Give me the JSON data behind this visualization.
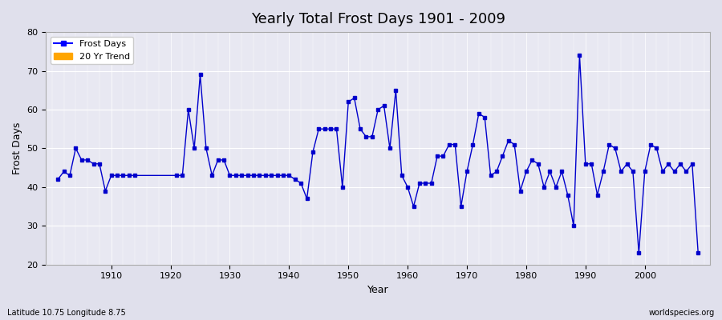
{
  "title": "Yearly Total Frost Days 1901 - 2009",
  "xlabel": "Year",
  "ylabel": "Frost Days",
  "footer_left": "Latitude 10.75 Longitude 8.75",
  "footer_right": "worldspecies.org",
  "legend_labels": [
    "Frost Days",
    "20 Yr Trend"
  ],
  "legend_colors": [
    "#0000ff",
    "#ffa500"
  ],
  "bg_color": "#e0e0ec",
  "plot_bg_color": "#e8e8f2",
  "line_color": "#0000cc",
  "marker_color": "#0000cc",
  "ylim": [
    20,
    80
  ],
  "xlim": [
    1899,
    2011
  ],
  "yticks": [
    20,
    30,
    40,
    50,
    60,
    70,
    80
  ],
  "xticks": [
    1910,
    1920,
    1930,
    1940,
    1950,
    1960,
    1970,
    1980,
    1990,
    2000
  ],
  "years": [
    1901,
    1902,
    1903,
    1904,
    1905,
    1906,
    1907,
    1908,
    1909,
    1910,
    1911,
    1912,
    1913,
    1914,
    1921,
    1922,
    1923,
    1924,
    1925,
    1926,
    1927,
    1928,
    1929,
    1930,
    1931,
    1932,
    1933,
    1934,
    1935,
    1936,
    1937,
    1938,
    1939,
    1940,
    1941,
    1942,
    1943,
    1944,
    1945,
    1946,
    1947,
    1948,
    1949,
    1950,
    1951,
    1952,
    1953,
    1954,
    1955,
    1956,
    1957,
    1958,
    1959,
    1960,
    1961,
    1962,
    1963,
    1964,
    1965,
    1966,
    1967,
    1968,
    1969,
    1970,
    1971,
    1972,
    1973,
    1974,
    1975,
    1976,
    1977,
    1978,
    1979,
    1980,
    1981,
    1982,
    1983,
    1984,
    1985,
    1986,
    1987,
    1988,
    1989,
    1990,
    1991,
    1992,
    1993,
    1994,
    1995,
    1996,
    1997,
    1998,
    1999,
    2000,
    2001,
    2002,
    2003,
    2004,
    2005,
    2006,
    2007,
    2008,
    2009
  ],
  "values": [
    42,
    44,
    43,
    50,
    47,
    47,
    46,
    46,
    39,
    43,
    43,
    43,
    43,
    43,
    43,
    43,
    60,
    50,
    69,
    50,
    43,
    47,
    47,
    43,
    43,
    43,
    43,
    43,
    43,
    43,
    43,
    43,
    43,
    43,
    42,
    41,
    37,
    49,
    55,
    55,
    55,
    55,
    40,
    62,
    63,
    55,
    53,
    53,
    60,
    61,
    50,
    65,
    43,
    40,
    35,
    41,
    41,
    41,
    48,
    48,
    51,
    51,
    35,
    44,
    51,
    59,
    58,
    43,
    44,
    48,
    52,
    51,
    39,
    44,
    47,
    46,
    40,
    44,
    40,
    44,
    38,
    30,
    74,
    46,
    46,
    38,
    44,
    51,
    50,
    44,
    46,
    44,
    23,
    44,
    51,
    50,
    44,
    46,
    44,
    46,
    44,
    46,
    23
  ]
}
